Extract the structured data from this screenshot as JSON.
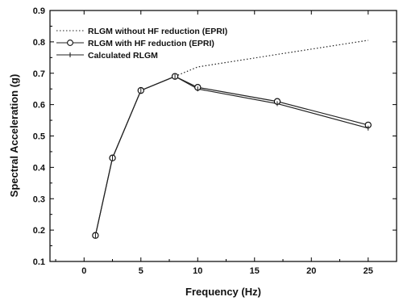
{
  "chart_data": {
    "type": "line",
    "title": "",
    "xlabel": "Frequency (Hz)",
    "ylabel": "Spectral Acceleration (g)",
    "xlim": [
      -3,
      27.5
    ],
    "ylim": [
      0.1,
      0.9
    ],
    "x_ticks": [
      "0",
      "5",
      "10",
      "15",
      "20",
      "25"
    ],
    "y_ticks": [
      "0.1",
      "0.2",
      "0.3",
      "0.4",
      "0.5",
      "0.6",
      "0.7",
      "0.8",
      "0.9"
    ],
    "legend_position": "top-left",
    "grid": false,
    "series": [
      {
        "name": "RLGM without HF reduction (EPRI)",
        "style": "dotted",
        "marker": "none",
        "x": [
          8,
          10,
          17,
          25
        ],
        "y": [
          0.69,
          0.72,
          0.76,
          0.805
        ]
      },
      {
        "name": "RLGM with HF reduction (EPRI)",
        "style": "solid",
        "marker": "circle",
        "x": [
          1,
          2.5,
          5,
          8,
          10,
          17,
          25
        ],
        "y": [
          0.183,
          0.43,
          0.645,
          0.69,
          0.655,
          0.61,
          0.535
        ]
      },
      {
        "name": "Calculated RLGM",
        "style": "solid",
        "marker": "vertical-bar",
        "x": [
          1,
          2.5,
          5,
          8,
          10,
          17,
          25
        ],
        "y": [
          0.183,
          0.43,
          0.645,
          0.69,
          0.65,
          0.603,
          0.525
        ]
      }
    ]
  }
}
